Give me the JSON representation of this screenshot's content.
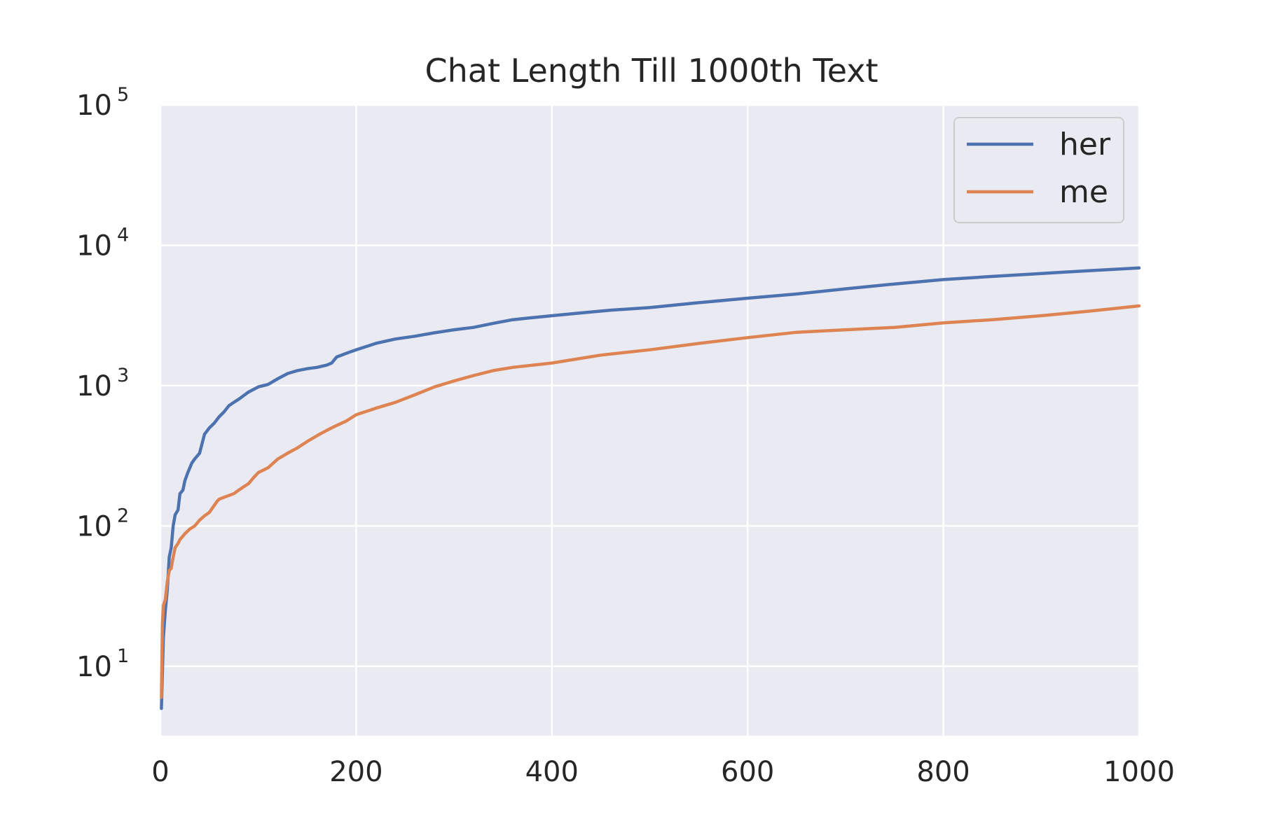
{
  "chart_data": {
    "type": "line",
    "title": "Chat Length Till 1000th Text",
    "xlabel": "",
    "ylabel": "",
    "x_scale": "linear",
    "y_scale": "log",
    "xlim": [
      0,
      1000
    ],
    "ylim": [
      3.2,
      100000
    ],
    "x_ticks": [
      0,
      200,
      400,
      600,
      800,
      1000
    ],
    "x_tick_labels": [
      "0",
      "200",
      "400",
      "600",
      "800",
      "1000"
    ],
    "y_ticks": [
      10,
      100,
      1000,
      10000,
      100000
    ],
    "y_tick_labels": [
      {
        "base": "10",
        "exp": "1"
      },
      {
        "base": "10",
        "exp": "2"
      },
      {
        "base": "10",
        "exp": "3"
      },
      {
        "base": "10",
        "exp": "4"
      },
      {
        "base": "10",
        "exp": "5"
      }
    ],
    "grid": true,
    "background": "#eaeaf2",
    "grid_color": "#ffffff",
    "legend_position": "top-right",
    "series": [
      {
        "name": "her",
        "color": "#4c72b0",
        "x": [
          1,
          3,
          5,
          7,
          9,
          11,
          13,
          15,
          18,
          20,
          23,
          25,
          28,
          32,
          35,
          40,
          45,
          50,
          55,
          60,
          65,
          70,
          75,
          80,
          90,
          100,
          110,
          120,
          130,
          140,
          150,
          160,
          170,
          175,
          180,
          190,
          200,
          220,
          240,
          260,
          280,
          300,
          320,
          340,
          360,
          380,
          400,
          430,
          460,
          500,
          550,
          600,
          650,
          700,
          750,
          800,
          850,
          900,
          950,
          1000
        ],
        "y": [
          5,
          16,
          25,
          35,
          60,
          70,
          100,
          120,
          130,
          170,
          180,
          210,
          240,
          280,
          300,
          330,
          450,
          500,
          540,
          600,
          650,
          720,
          760,
          800,
          900,
          980,
          1020,
          1120,
          1220,
          1280,
          1320,
          1350,
          1400,
          1450,
          1600,
          1700,
          1800,
          2000,
          2150,
          2250,
          2380,
          2500,
          2600,
          2780,
          2950,
          3050,
          3150,
          3300,
          3450,
          3600,
          3900,
          4200,
          4500,
          4900,
          5300,
          5700,
          6000,
          6300,
          6600,
          6900
        ]
      },
      {
        "name": "me",
        "color": "#dd8452",
        "x": [
          1,
          2,
          3,
          5,
          7,
          9,
          11,
          13,
          15,
          18,
          20,
          25,
          30,
          35,
          40,
          45,
          50,
          55,
          58,
          60,
          65,
          70,
          75,
          80,
          85,
          90,
          95,
          100,
          110,
          120,
          130,
          140,
          150,
          160,
          170,
          180,
          190,
          200,
          220,
          240,
          260,
          280,
          300,
          320,
          340,
          360,
          400,
          450,
          500,
          550,
          600,
          650,
          700,
          750,
          800,
          850,
          900,
          950,
          1000
        ],
        "y": [
          6,
          20,
          27,
          30,
          40,
          48,
          50,
          60,
          70,
          75,
          80,
          88,
          95,
          100,
          110,
          118,
          125,
          140,
          150,
          155,
          160,
          165,
          170,
          180,
          190,
          200,
          220,
          240,
          260,
          300,
          330,
          360,
          400,
          440,
          480,
          520,
          560,
          620,
          690,
          760,
          860,
          980,
          1080,
          1180,
          1280,
          1350,
          1450,
          1650,
          1800,
          2000,
          2200,
          2400,
          2500,
          2600,
          2800,
          2950,
          3150,
          3400,
          3700
        ]
      }
    ]
  }
}
